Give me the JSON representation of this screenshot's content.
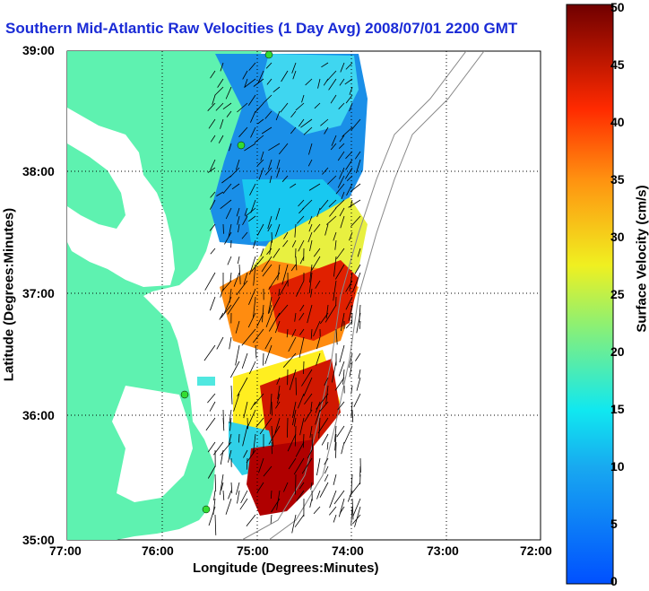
{
  "title": "Southern Mid-Atlantic Raw Velocities (1 Day Avg) 2008/07/01 2200 GMT",
  "axes": {
    "xlabel": "Longitude (Degrees:Minutes)",
    "ylabel": "Latitude (Degrees:Minutes)",
    "xticks": [
      "77:00",
      "76:00",
      "75:00",
      "74:00",
      "73:00",
      "72:00"
    ],
    "yticks": [
      "39:00",
      "38:00",
      "37:00",
      "36:00",
      "35:00"
    ]
  },
  "colorbar": {
    "label": "Surface Velocity (cm/s)",
    "ticks": [
      "0",
      "5",
      "10",
      "15",
      "20",
      "25",
      "30",
      "35",
      "40",
      "45",
      "50"
    ],
    "min": 0,
    "max": 50
  },
  "colors": {
    "land": "#5ef2b0",
    "title": "#1a2bd6",
    "station": "#33dd33"
  },
  "stations_count_visible": 4
}
